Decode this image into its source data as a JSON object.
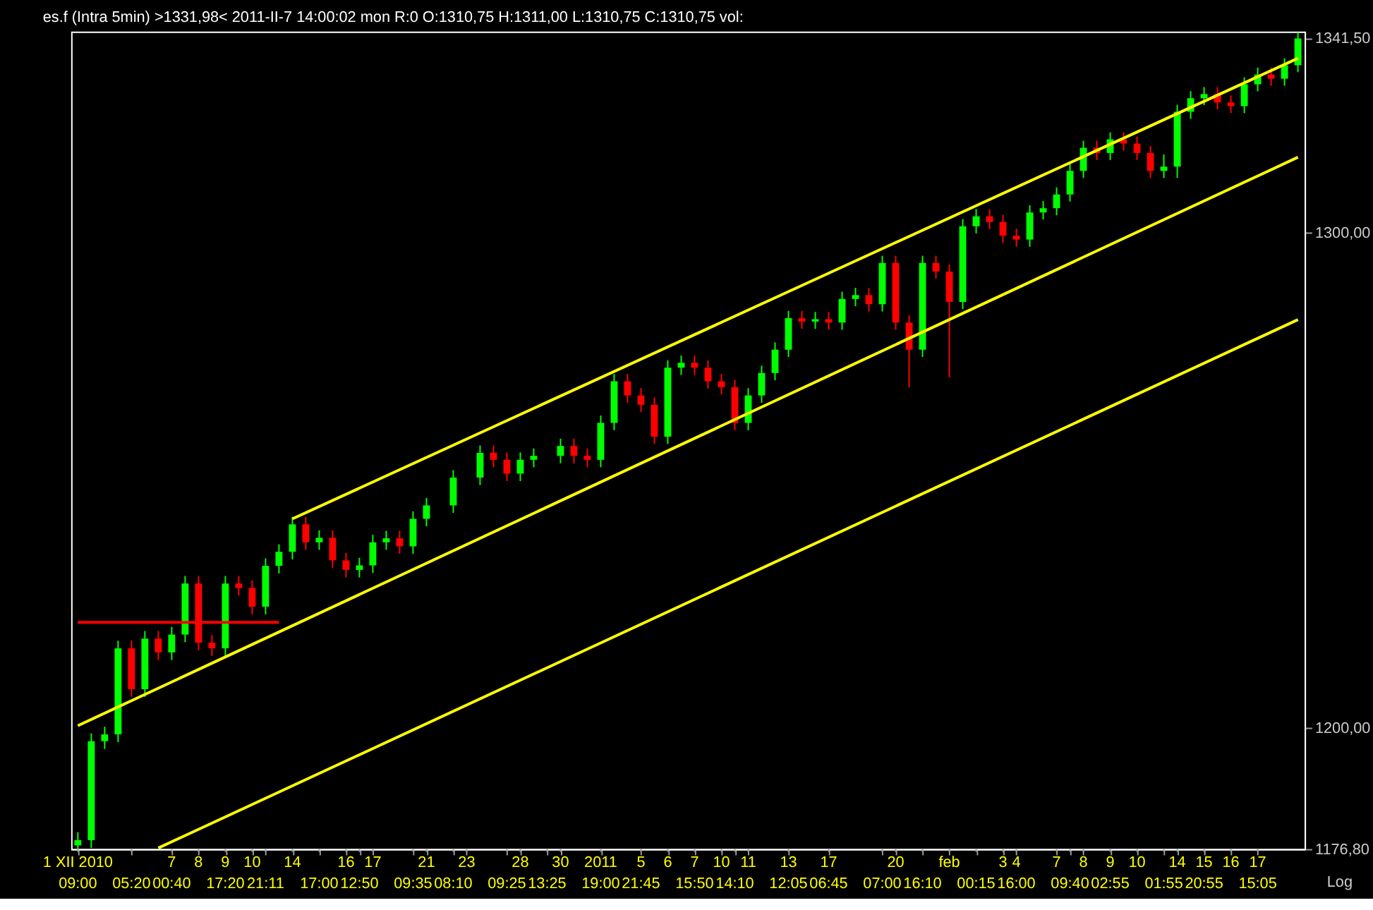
{
  "chart_data": {
    "type": "candlestick",
    "title": "es.f (Intra 5min)   >1331,98<  2011-II-7     14:00:02 mon R:0 O:1310,75 H:1311,00 L:1310,75 C:1310,75 vol:",
    "annotations": [
      "Log"
    ],
    "log": true,
    "categories": [
      "1 XII 2010\n09:00",
      null,
      null,
      null,
      "\n05:20",
      null,
      null,
      "7\n00:40",
      null,
      "8",
      null,
      "9\n17:20",
      null,
      "10",
      "\n21:11",
      null,
      "14",
      null,
      "\n17:00",
      null,
      "16",
      "\n12:50",
      "17",
      null,
      null,
      "\n09:35",
      "21",
      null,
      "\n08:10",
      "23",
      null,
      null,
      "\n09:25",
      "28",
      null,
      "\n13:25",
      "30",
      null,
      null,
      "2011\n19:00",
      null,
      null,
      "5\n21:45",
      null,
      "6",
      null,
      "7\n15:50",
      null,
      "10",
      "\n14:10",
      "11",
      null,
      null,
      "13\n12:05",
      null,
      null,
      "17\n06:45",
      null,
      null,
      null,
      "\n07:00",
      "20",
      null,
      "\n16:10",
      null,
      "feb",
      null,
      "\n00:15",
      null,
      "3",
      "4\n16:00",
      null,
      null,
      "7",
      "\n09:40",
      "8",
      null,
      "9\n02:55",
      null,
      "10",
      null,
      "\n01:55",
      "14",
      null,
      "15\n20:55",
      null,
      "16",
      null,
      "17\n15:05",
      null,
      null,
      null
    ],
    "ohlc": [
      [
        1177.5,
        1180.0,
        1176.8,
        1178.5
      ],
      [
        1178.5,
        1199.0,
        1177.0,
        1197.5
      ],
      [
        1197.5,
        1200.3,
        1196.0,
        1198.8
      ],
      [
        1198.8,
        1217.1,
        1197.3,
        1215.6
      ],
      [
        1215.6,
        1217.1,
        1206.1,
        1207.6
      ],
      [
        1207.6,
        1219.0,
        1206.1,
        1217.5
      ],
      [
        1217.5,
        1219.0,
        1213.3,
        1214.8
      ],
      [
        1214.8,
        1219.8,
        1213.3,
        1218.3
      ],
      [
        1218.3,
        1229.9,
        1216.8,
        1228.4
      ],
      [
        1228.4,
        1229.9,
        1215.2,
        1216.7
      ],
      [
        1216.7,
        1218.2,
        1214.1,
        1215.6
      ],
      [
        1215.6,
        1229.9,
        1214.1,
        1228.4
      ],
      [
        1228.4,
        1229.9,
        1226.0,
        1227.5
      ],
      [
        1227.5,
        1229.0,
        1222.3,
        1223.8
      ],
      [
        1223.8,
        1233.4,
        1222.3,
        1231.9
      ],
      [
        1231.9,
        1236.2,
        1230.4,
        1234.7
      ],
      [
        1234.7,
        1241.7,
        1233.2,
        1240.2
      ],
      [
        1240.2,
        1241.7,
        1235.1,
        1236.6
      ],
      [
        1236.6,
        1239.0,
        1235.1,
        1237.5
      ],
      [
        1237.5,
        1239.0,
        1231.5,
        1233.0
      ],
      [
        1233.0,
        1234.5,
        1229.6,
        1231.1
      ],
      [
        1231.1,
        1233.5,
        1229.6,
        1232.0
      ],
      [
        1232.0,
        1238.1,
        1230.5,
        1236.6
      ],
      [
        1236.6,
        1238.9,
        1235.1,
        1237.4
      ],
      [
        1237.4,
        1238.9,
        1234.3,
        1235.8
      ],
      [
        1235.8,
        1242.8,
        1234.3,
        1241.3
      ],
      [
        1241.3,
        1245.5,
        1239.8,
        1244.0
      ],
      null,
      [
        1244.0,
        1251.1,
        1242.5,
        1249.6
      ],
      null,
      [
        1249.6,
        1256.1,
        1248.1,
        1254.6
      ],
      [
        1254.6,
        1256.1,
        1251.7,
        1253.2
      ],
      [
        1253.2,
        1254.7,
        1248.9,
        1250.4
      ],
      [
        1250.4,
        1254.7,
        1248.9,
        1253.2
      ],
      [
        1253.2,
        1255.5,
        1251.7,
        1254.0
      ],
      null,
      [
        1254.0,
        1257.5,
        1252.5,
        1256.0
      ],
      [
        1256.0,
        1257.5,
        1252.5,
        1254.0
      ],
      [
        1254.0,
        1255.5,
        1251.7,
        1253.2
      ],
      [
        1253.2,
        1262.2,
        1251.7,
        1260.7
      ],
      [
        1260.7,
        1270.7,
        1259.2,
        1269.2
      ],
      [
        1269.2,
        1270.7,
        1264.8,
        1266.3
      ],
      [
        1266.3,
        1267.8,
        1262.9,
        1264.4
      ],
      [
        1264.4,
        1265.9,
        1256.4,
        1257.9
      ],
      [
        1257.9,
        1273.5,
        1256.4,
        1272.0
      ],
      [
        1272.0,
        1274.5,
        1270.5,
        1273.0
      ],
      [
        1273.0,
        1274.5,
        1270.5,
        1272.0
      ],
      [
        1272.0,
        1273.5,
        1267.7,
        1269.2
      ],
      [
        1269.2,
        1270.7,
        1266.5,
        1268.0
      ],
      [
        1268.0,
        1269.5,
        1259.2,
        1260.7
      ],
      [
        1260.7,
        1267.8,
        1259.2,
        1266.3
      ],
      [
        1266.3,
        1272.4,
        1264.8,
        1270.9
      ],
      [
        1270.9,
        1277.2,
        1269.4,
        1275.7
      ],
      [
        1275.7,
        1283.7,
        1274.2,
        1282.2
      ],
      [
        1282.2,
        1283.7,
        1280.0,
        1281.5
      ],
      [
        1281.5,
        1283.5,
        1280.0,
        1282.0
      ],
      [
        1282.0,
        1283.5,
        1279.8,
        1281.3
      ],
      [
        1281.3,
        1287.7,
        1279.8,
        1286.2
      ],
      [
        1286.2,
        1288.5,
        1284.7,
        1287.0
      ],
      [
        1287.0,
        1288.5,
        1283.6,
        1285.1
      ],
      [
        1285.1,
        1295.2,
        1283.6,
        1293.7
      ],
      [
        1293.7,
        1295.2,
        1279.8,
        1281.3
      ],
      [
        1281.3,
        1282.8,
        1268.0,
        1275.7
      ],
      [
        1275.7,
        1295.2,
        1274.2,
        1293.7
      ],
      [
        1293.7,
        1295.2,
        1290.4,
        1291.9
      ],
      [
        1291.9,
        1293.4,
        1270.0,
        1285.6
      ],
      [
        1285.6,
        1302.9,
        1284.1,
        1301.4
      ],
      [
        1301.4,
        1305.0,
        1299.9,
        1303.5
      ],
      [
        1303.5,
        1305.0,
        1300.8,
        1302.3
      ],
      [
        1302.3,
        1303.8,
        1297.9,
        1299.4
      ],
      [
        1299.4,
        1300.9,
        1297.1,
        1298.6
      ],
      [
        1298.6,
        1305.8,
        1297.1,
        1304.3
      ],
      [
        1304.3,
        1306.7,
        1302.8,
        1305.2
      ],
      [
        1305.2,
        1309.6,
        1303.7,
        1308.1
      ],
      [
        1308.1,
        1314.6,
        1306.6,
        1313.1
      ],
      [
        1313.1,
        1319.5,
        1311.6,
        1318.0
      ],
      [
        1318.0,
        1319.5,
        1315.4,
        1316.9
      ],
      [
        1316.9,
        1321.3,
        1315.4,
        1319.8
      ],
      [
        1319.8,
        1321.3,
        1317.4,
        1318.9
      ],
      [
        1318.9,
        1320.4,
        1315.4,
        1316.9
      ],
      [
        1316.9,
        1318.4,
        1311.6,
        1313.1
      ],
      [
        1313.1,
        1316.6,
        1311.6,
        1314.0
      ],
      [
        1314.0,
        1327.2,
        1311.6,
        1325.7
      ],
      [
        1325.7,
        1330.1,
        1324.2,
        1328.6
      ],
      [
        1328.6,
        1331.0,
        1327.1,
        1329.5
      ],
      [
        1329.5,
        1331.0,
        1326.2,
        1327.7
      ],
      [
        1327.7,
        1329.2,
        1325.4,
        1326.9
      ],
      [
        1326.9,
        1333.1,
        1325.4,
        1331.6
      ],
      [
        1331.6,
        1335.2,
        1330.1,
        1333.7
      ],
      [
        1333.7,
        1335.2,
        1331.3,
        1332.8
      ],
      [
        1332.8,
        1337.2,
        1331.3,
        1335.7
      ],
      [
        1335.7,
        1342.8,
        1334.2,
        1341.5
      ]
    ],
    "colors": [
      "#00ff00",
      "#00ff00",
      "#00ff00",
      "#00ff00",
      "#ff0000",
      "#00ff00",
      "#ff0000",
      "#00ff00",
      "#00ff00",
      "#ff0000",
      "#ff0000",
      "#00ff00",
      "#ff0000",
      "#ff0000",
      "#00ff00",
      "#00ff00",
      "#00ff00",
      "#ff0000",
      "#00ff00",
      "#ff0000",
      "#ff0000",
      "#00ff00",
      "#00ff00",
      "#00ff00",
      "#ff0000",
      "#00ff00",
      "#00ff00",
      null,
      "#00ff00",
      null,
      "#00ff00",
      "#ff0000",
      "#ff0000",
      "#00ff00",
      "#00ff00",
      null,
      "#00ff00",
      "#ff0000",
      "#ff0000",
      "#00ff00",
      "#00ff00",
      "#ff0000",
      "#ff0000",
      "#ff0000",
      "#00ff00",
      "#00ff00",
      "#ff0000",
      "#ff0000",
      "#ff0000",
      "#ff0000",
      "#00ff00",
      "#00ff00",
      "#00ff00",
      "#00ff00",
      "#ff0000",
      "#00ff00",
      "#ff0000",
      "#00ff00",
      "#00ff00",
      "#ff0000",
      "#00ff00",
      "#ff0000",
      "#ff0000",
      "#00ff00",
      "#ff0000",
      "#ff0000",
      "#00ff00",
      "#00ff00",
      "#ff0000",
      "#ff0000",
      "#ff0000",
      "#00ff00",
      "#00ff00",
      "#00ff00",
      "#00ff00",
      "#00ff00",
      "#ff0000",
      "#00ff00",
      "#ff0000",
      "#ff0000",
      "#ff0000",
      "#00ff00",
      "#00ff00",
      "#00ff00",
      "#00ff00",
      "#ff0000",
      "#ff0000",
      "#00ff00",
      "#00ff00",
      "#ff0000",
      "#00ff00",
      "#00ff00"
    ],
    "series": [
      {
        "type": "line",
        "color": "#ffff00",
        "values": [
          null,
          null,
          null,
          null,
          null,
          null,
          null,
          null,
          null,
          null,
          null,
          null,
          null,
          null,
          null,
          null,
          1241.3,
          null,
          null,
          null,
          null,
          null,
          null,
          null,
          null,
          null,
          null,
          null,
          null,
          null,
          null,
          null,
          null,
          null,
          null,
          null,
          null,
          null,
          null,
          null,
          null,
          null,
          null,
          null,
          null,
          null,
          null,
          null,
          null,
          null,
          null,
          null,
          null,
          null,
          null,
          null,
          null,
          null,
          null,
          null,
          null,
          null,
          null,
          null,
          null,
          null,
          null,
          null,
          null,
          null,
          null,
          null,
          null,
          null,
          null,
          null,
          null,
          null,
          null,
          null,
          null,
          null,
          null,
          null,
          null,
          null,
          null,
          null,
          null,
          null,
          null,
          1337.2
        ]
      },
      {
        "type": "line",
        "color": "#ffff00",
        "values": [
          1200.5,
          null,
          null,
          null,
          null,
          null,
          null,
          null,
          null,
          null,
          null,
          null,
          null,
          null,
          null,
          null,
          null,
          null,
          null,
          null,
          null,
          null,
          null,
          null,
          null,
          null,
          null,
          null,
          null,
          null,
          null,
          null,
          null,
          null,
          null,
          null,
          null,
          null,
          null,
          null,
          null,
          null,
          null,
          null,
          null,
          null,
          null,
          null,
          null,
          null,
          null,
          null,
          null,
          null,
          null,
          null,
          null,
          null,
          null,
          null,
          null,
          null,
          null,
          null,
          null,
          null,
          null,
          null,
          null,
          null,
          null,
          null,
          null,
          null,
          null,
          null,
          null,
          null,
          null,
          null,
          null,
          null,
          null,
          null,
          null,
          null,
          null,
          null,
          null,
          null,
          null,
          1316.0
        ]
      },
      {
        "type": "line",
        "color": "#ffff00",
        "values": [
          null,
          null,
          null,
          null,
          null,
          null,
          1177.0,
          null,
          null,
          null,
          null,
          null,
          null,
          null,
          null,
          null,
          null,
          null,
          null,
          null,
          null,
          null,
          null,
          null,
          null,
          null,
          null,
          null,
          null,
          null,
          null,
          null,
          null,
          null,
          null,
          null,
          null,
          null,
          null,
          null,
          null,
          null,
          null,
          null,
          null,
          null,
          null,
          null,
          null,
          null,
          null,
          null,
          null,
          null,
          null,
          null,
          null,
          null,
          null,
          null,
          null,
          null,
          null,
          null,
          null,
          null,
          null,
          null,
          null,
          null,
          null,
          null,
          null,
          null,
          null,
          null,
          null,
          null,
          null,
          null,
          null,
          null,
          null,
          null,
          null,
          null,
          null,
          null,
          null,
          null,
          null,
          1281.9
        ]
      },
      {
        "type": "line",
        "color": "#ff0000",
        "values": [
          1220.7,
          null,
          null,
          null,
          null,
          null,
          null,
          null,
          null,
          null,
          null,
          null,
          null,
          null,
          null,
          1220.7,
          null,
          null,
          null,
          null,
          null,
          null,
          null,
          null,
          null,
          null,
          null,
          null,
          null,
          null,
          null,
          null,
          null,
          null,
          null,
          null,
          null,
          null,
          null,
          null,
          null,
          null,
          null,
          null,
          null,
          null,
          null,
          null,
          null,
          null,
          null,
          null,
          null,
          null,
          null,
          null,
          null,
          null,
          null,
          null,
          null,
          null,
          null,
          null,
          null,
          null,
          null,
          null,
          null,
          null,
          null,
          null,
          null,
          null,
          null,
          null,
          null,
          null,
          null,
          null,
          null,
          null,
          null,
          null,
          null,
          null,
          null,
          null,
          null,
          null,
          null,
          null
        ]
      }
    ],
    "ylim": [
      1176.8,
      1343
    ],
    "yticks": [
      {
        "value": 1176.8,
        "label": "1176,80"
      },
      {
        "value": 1200,
        "label": "1200,00"
      },
      {
        "value": 1300,
        "label": "1300,00"
      },
      {
        "value": 1341.5,
        "label": "1341,50"
      }
    ]
  }
}
